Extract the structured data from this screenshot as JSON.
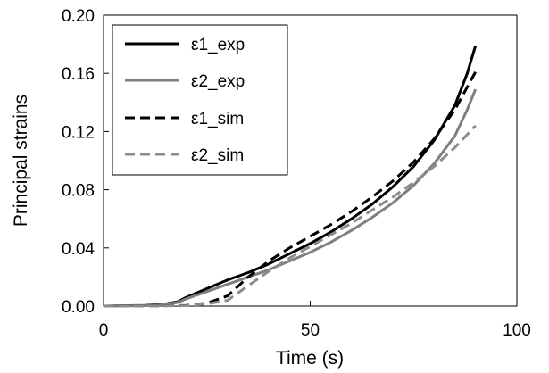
{
  "chart_data": {
    "type": "line",
    "title": "",
    "xlabel": "Time (s)",
    "ylabel": "Principal strains",
    "xlim": [
      0,
      100
    ],
    "ylim": [
      0,
      0.2
    ],
    "xticks": [
      0,
      50,
      100
    ],
    "xtick_labels": [
      "0",
      "50",
      "100"
    ],
    "yticks": [
      0,
      0.04,
      0.08,
      0.12,
      0.16,
      0.2
    ],
    "ytick_labels": [
      "0.00",
      "0.04",
      "0.08",
      "0.12",
      "0.16",
      "0.20"
    ],
    "grid": false,
    "legend_position": "top-left",
    "series": [
      {
        "name": "ε1_exp",
        "color": "#000000",
        "dash": "solid",
        "x": [
          0,
          10,
          15,
          18,
          20,
          25,
          30,
          35,
          40,
          45,
          50,
          55,
          60,
          65,
          70,
          75,
          80,
          85,
          88,
          90
        ],
        "y": [
          0,
          0.0005,
          0.0015,
          0.003,
          0.006,
          0.012,
          0.018,
          0.023,
          0.029,
          0.036,
          0.043,
          0.051,
          0.06,
          0.07,
          0.082,
          0.096,
          0.114,
          0.138,
          0.16,
          0.179
        ]
      },
      {
        "name": "ε2_exp",
        "color": "#7f7f7f",
        "dash": "solid",
        "x": [
          0,
          10,
          15,
          18,
          20,
          25,
          30,
          35,
          40,
          45,
          50,
          55,
          60,
          65,
          70,
          75,
          80,
          85,
          88,
          90
        ],
        "y": [
          0,
          0.0003,
          0.001,
          0.0025,
          0.005,
          0.01,
          0.015,
          0.02,
          0.025,
          0.031,
          0.037,
          0.044,
          0.052,
          0.061,
          0.071,
          0.083,
          0.098,
          0.117,
          0.135,
          0.149
        ]
      },
      {
        "name": "ε1_sim",
        "color": "#000000",
        "dash": "dashed",
        "x": [
          0,
          10,
          20,
          25,
          30,
          35,
          40,
          45,
          50,
          55,
          60,
          65,
          70,
          75,
          80,
          85,
          90
        ],
        "y": [
          0,
          0,
          0.0005,
          0.002,
          0.007,
          0.02,
          0.031,
          0.04,
          0.048,
          0.056,
          0.065,
          0.075,
          0.086,
          0.099,
          0.115,
          0.135,
          0.161
        ]
      },
      {
        "name": "ε2_sim",
        "color": "#8c8c8c",
        "dash": "dashed",
        "x": [
          0,
          10,
          20,
          25,
          30,
          35,
          40,
          45,
          50,
          55,
          60,
          65,
          70,
          75,
          80,
          85,
          90
        ],
        "y": [
          0,
          0,
          0.0003,
          0.0015,
          0.004,
          0.014,
          0.024,
          0.033,
          0.041,
          0.049,
          0.057,
          0.066,
          0.075,
          0.085,
          0.096,
          0.109,
          0.124
        ]
      }
    ]
  }
}
